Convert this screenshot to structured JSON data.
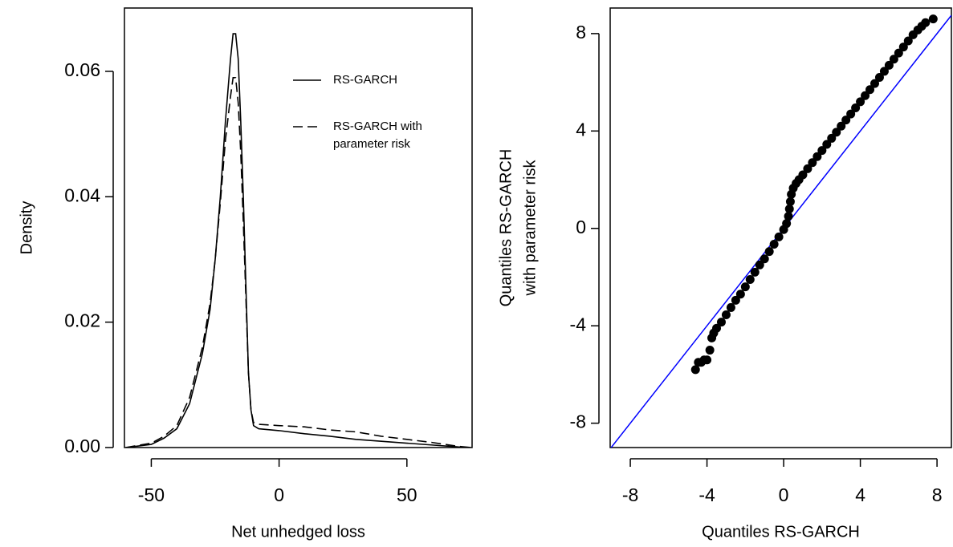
{
  "chart_data": [
    {
      "type": "line",
      "xlabel": "Net unhedged loss",
      "ylabel": "Density",
      "x": [
        -60,
        -50,
        -45,
        -40,
        -35,
        -30,
        -27,
        -25,
        -23,
        -21,
        -19,
        -18,
        -17,
        -16,
        -15,
        -14,
        -13,
        -12,
        -11,
        -10,
        -8,
        0,
        10,
        20,
        30,
        40,
        50,
        60,
        70,
        75
      ],
      "series": [
        {
          "name": "RS-GARCH",
          "color": "#000000",
          "linestyle": "solid",
          "values": [
            0,
            0.0005,
            0.0015,
            0.003,
            0.007,
            0.015,
            0.022,
            0.03,
            0.04,
            0.052,
            0.062,
            0.066,
            0.066,
            0.062,
            0.052,
            0.04,
            0.026,
            0.012,
            0.006,
            0.0035,
            0.003,
            0.0027,
            0.0022,
            0.0018,
            0.0013,
            0.001,
            0.0007,
            0.0004,
            0.0001,
            0
          ]
        },
        {
          "name": "RS-GARCH with parameter risk",
          "color": "#000000",
          "linestyle": "dashed",
          "values": [
            0,
            0.0007,
            0.0018,
            0.0035,
            0.008,
            0.016,
            0.023,
            0.03,
            0.039,
            0.049,
            0.056,
            0.059,
            0.059,
            0.055,
            0.047,
            0.036,
            0.024,
            0.012,
            0.006,
            0.004,
            0.0037,
            0.0035,
            0.0033,
            0.0028,
            0.0025,
            0.0018,
            0.0013,
            0.0008,
            0.0002,
            0
          ]
        }
      ],
      "xlim": [
        -60.5,
        75.5
      ],
      "ylim": [
        0,
        0.0701
      ],
      "xticks": [
        -50,
        0,
        50
      ],
      "yticks": [
        {
          "value": 0,
          "label": "0.00"
        },
        0.02,
        0.04,
        0.06
      ],
      "legend": "upper right"
    },
    {
      "type": "scatter",
      "xlabel": "Quantiles RS-GARCH",
      "ylabel": [
        "Quantiles RS-GARCH",
        "with parameter risk"
      ],
      "x": [
        -4.6,
        -4.45,
        -4.3,
        -4.15,
        -4.0,
        -3.85,
        -3.75,
        -3.65,
        -3.5,
        -3.25,
        -3.0,
        -2.75,
        -2.5,
        -2.25,
        -2.0,
        -1.75,
        -1.5,
        -1.25,
        -1.0,
        -0.75,
        -0.5,
        -0.25,
        0,
        0.15,
        0.25,
        0.3,
        0.35,
        0.4,
        0.5,
        0.65,
        0.8,
        1.0,
        1.25,
        1.5,
        1.75,
        2.0,
        2.25,
        2.5,
        2.75,
        3.0,
        3.25,
        3.5,
        3.75,
        4.0,
        4.25,
        4.5,
        4.75,
        5.0,
        5.25,
        5.5,
        5.75,
        6.0,
        6.25,
        6.5,
        6.75,
        7.0,
        7.2,
        7.4,
        7.8
      ],
      "y": [
        -5.8,
        -5.5,
        -5.5,
        -5.4,
        -5.4,
        -5.0,
        -4.5,
        -4.3,
        -4.1,
        -3.85,
        -3.55,
        -3.25,
        -2.95,
        -2.7,
        -2.4,
        -2.1,
        -1.8,
        -1.5,
        -1.25,
        -0.95,
        -0.65,
        -0.35,
        -0.05,
        0.2,
        0.5,
        0.8,
        1.1,
        1.4,
        1.65,
        1.85,
        2.0,
        2.2,
        2.45,
        2.7,
        2.95,
        3.2,
        3.45,
        3.7,
        3.95,
        4.2,
        4.45,
        4.7,
        4.95,
        5.2,
        5.45,
        5.7,
        5.95,
        6.2,
        6.45,
        6.7,
        6.95,
        7.2,
        7.45,
        7.7,
        7.95,
        8.15,
        8.3,
        8.45,
        8.6
      ],
      "color": "#000000",
      "reference_line": {
        "intercept": 0,
        "slope": 1,
        "color": "#0000ff"
      },
      "xlim": [
        -9.05,
        8.75
      ],
      "ylim": [
        -9,
        9.05
      ],
      "xticks": [
        -8,
        -4,
        0,
        4,
        8
      ],
      "yticks": [
        -8,
        -4,
        0,
        4,
        8
      ]
    }
  ]
}
